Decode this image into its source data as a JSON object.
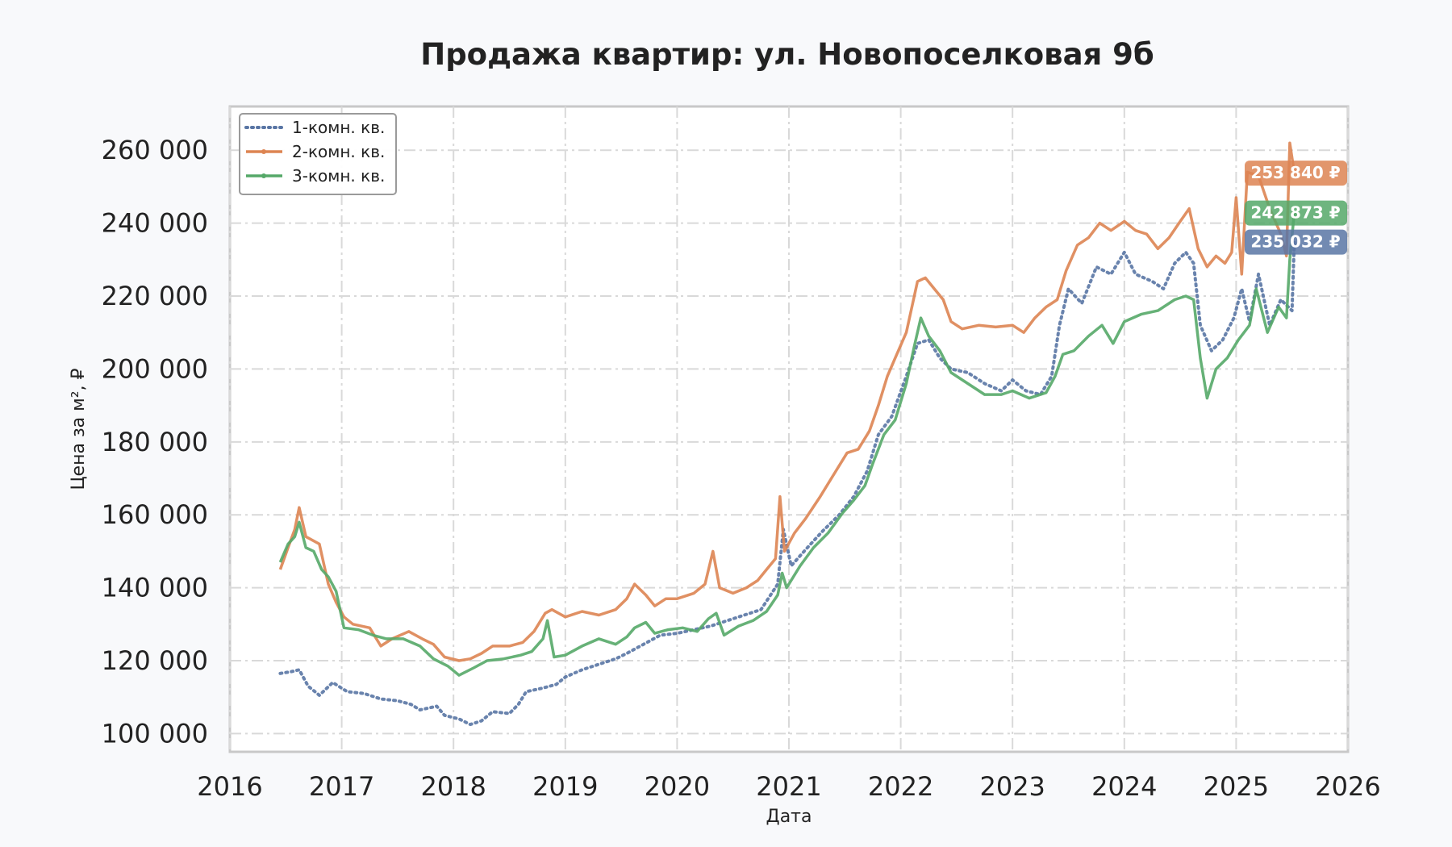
{
  "chart_data": {
    "type": "line",
    "title": "Продажа квартир: ул. Новопоселковая 9б",
    "xlabel": "Дата",
    "ylabel": "Цена за м², ₽",
    "xlim": [
      2016,
      2026
    ],
    "ylim": [
      95000,
      272000
    ],
    "x_ticks": [
      "2016",
      "2017",
      "2018",
      "2019",
      "2020",
      "2021",
      "2022",
      "2023",
      "2024",
      "2025",
      "2026"
    ],
    "y_ticks": [
      "100 000",
      "120 000",
      "140 000",
      "160 000",
      "180 000",
      "200 000",
      "220 000",
      "240 000",
      "260 000"
    ],
    "grid": true,
    "legend_position": "top-left",
    "series": [
      {
        "name": "1-комн. кв.",
        "color": "#5975a4",
        "style": "dotted",
        "end_label": "235 032 ₽",
        "points": [
          [
            2016.45,
            116500
          ],
          [
            2016.55,
            117000
          ],
          [
            2016.62,
            117500
          ],
          [
            2016.7,
            113000
          ],
          [
            2016.8,
            110500
          ],
          [
            2016.92,
            114000
          ],
          [
            2017.05,
            111500
          ],
          [
            2017.2,
            111000
          ],
          [
            2017.35,
            109500
          ],
          [
            2017.5,
            109000
          ],
          [
            2017.62,
            108000
          ],
          [
            2017.7,
            106500
          ],
          [
            2017.85,
            107500
          ],
          [
            2017.92,
            105000
          ],
          [
            2018.05,
            104000
          ],
          [
            2018.15,
            102500
          ],
          [
            2018.25,
            103500
          ],
          [
            2018.35,
            106000
          ],
          [
            2018.5,
            105500
          ],
          [
            2018.58,
            108000
          ],
          [
            2018.65,
            111500
          ],
          [
            2018.8,
            112500
          ],
          [
            2018.92,
            113500
          ],
          [
            2019.0,
            115500
          ],
          [
            2019.15,
            117500
          ],
          [
            2019.3,
            119000
          ],
          [
            2019.45,
            120500
          ],
          [
            2019.55,
            122000
          ],
          [
            2019.7,
            124500
          ],
          [
            2019.85,
            127000
          ],
          [
            2020.0,
            127500
          ],
          [
            2020.15,
            128500
          ],
          [
            2020.3,
            129500
          ],
          [
            2020.45,
            131000
          ],
          [
            2020.6,
            132500
          ],
          [
            2020.75,
            134000
          ],
          [
            2020.9,
            141000
          ],
          [
            2020.95,
            156000
          ],
          [
            2021.02,
            146000
          ],
          [
            2021.15,
            150500
          ],
          [
            2021.3,
            155500
          ],
          [
            2021.45,
            160000
          ],
          [
            2021.58,
            165000
          ],
          [
            2021.7,
            172000
          ],
          [
            2021.8,
            182000
          ],
          [
            2021.92,
            187000
          ],
          [
            2022.05,
            198000
          ],
          [
            2022.15,
            207000
          ],
          [
            2022.25,
            208000
          ],
          [
            2022.35,
            203000
          ],
          [
            2022.45,
            200000
          ],
          [
            2022.6,
            199000
          ],
          [
            2022.75,
            196000
          ],
          [
            2022.9,
            194000
          ],
          [
            2023.0,
            197000
          ],
          [
            2023.12,
            194000
          ],
          [
            2023.25,
            193000
          ],
          [
            2023.35,
            198000
          ],
          [
            2023.42,
            212000
          ],
          [
            2023.5,
            222000
          ],
          [
            2023.62,
            218000
          ],
          [
            2023.75,
            228000
          ],
          [
            2023.88,
            226000
          ],
          [
            2024.0,
            232000
          ],
          [
            2024.1,
            226000
          ],
          [
            2024.25,
            224000
          ],
          [
            2024.35,
            222000
          ],
          [
            2024.45,
            229000
          ],
          [
            2024.55,
            232000
          ],
          [
            2024.62,
            229000
          ],
          [
            2024.68,
            212000
          ],
          [
            2024.78,
            205000
          ],
          [
            2024.88,
            208000
          ],
          [
            2024.98,
            214000
          ],
          [
            2025.05,
            222000
          ],
          [
            2025.12,
            213000
          ],
          [
            2025.2,
            226000
          ],
          [
            2025.3,
            212000
          ],
          [
            2025.4,
            219000
          ],
          [
            2025.5,
            216000
          ],
          [
            2025.52,
            235032
          ]
        ]
      },
      {
        "name": "2-комн. кв.",
        "color": "#dd8452",
        "style": "solid",
        "end_label": "253 840 ₽",
        "points": [
          [
            2016.45,
            145000
          ],
          [
            2016.52,
            151000
          ],
          [
            2016.58,
            156000
          ],
          [
            2016.62,
            162000
          ],
          [
            2016.68,
            154000
          ],
          [
            2016.8,
            152000
          ],
          [
            2016.88,
            141000
          ],
          [
            2016.95,
            136000
          ],
          [
            2017.02,
            132000
          ],
          [
            2017.1,
            130000
          ],
          [
            2017.25,
            129000
          ],
          [
            2017.35,
            124000
          ],
          [
            2017.45,
            126000
          ],
          [
            2017.6,
            128000
          ],
          [
            2017.72,
            126000
          ],
          [
            2017.82,
            124500
          ],
          [
            2017.92,
            121000
          ],
          [
            2018.05,
            120000
          ],
          [
            2018.15,
            120500
          ],
          [
            2018.25,
            122000
          ],
          [
            2018.35,
            124000
          ],
          [
            2018.5,
            124000
          ],
          [
            2018.62,
            125000
          ],
          [
            2018.72,
            128000
          ],
          [
            2018.82,
            133000
          ],
          [
            2018.88,
            134000
          ],
          [
            2019.0,
            132000
          ],
          [
            2019.15,
            133500
          ],
          [
            2019.3,
            132500
          ],
          [
            2019.45,
            134000
          ],
          [
            2019.55,
            137000
          ],
          [
            2019.62,
            141000
          ],
          [
            2019.72,
            138000
          ],
          [
            2019.8,
            135000
          ],
          [
            2019.9,
            137000
          ],
          [
            2020.0,
            137000
          ],
          [
            2020.15,
            138500
          ],
          [
            2020.25,
            141000
          ],
          [
            2020.32,
            150000
          ],
          [
            2020.38,
            140000
          ],
          [
            2020.5,
            138500
          ],
          [
            2020.62,
            140000
          ],
          [
            2020.72,
            142000
          ],
          [
            2020.8,
            145000
          ],
          [
            2020.88,
            148000
          ],
          [
            2020.92,
            165000
          ],
          [
            2020.96,
            150000
          ],
          [
            2021.05,
            155000
          ],
          [
            2021.15,
            159000
          ],
          [
            2021.28,
            165000
          ],
          [
            2021.4,
            171000
          ],
          [
            2021.52,
            177000
          ],
          [
            2021.62,
            178000
          ],
          [
            2021.72,
            183000
          ],
          [
            2021.8,
            190000
          ],
          [
            2021.88,
            198000
          ],
          [
            2021.95,
            203000
          ],
          [
            2022.05,
            210000
          ],
          [
            2022.15,
            224000
          ],
          [
            2022.22,
            225000
          ],
          [
            2022.3,
            222000
          ],
          [
            2022.38,
            219000
          ],
          [
            2022.45,
            213000
          ],
          [
            2022.55,
            211000
          ],
          [
            2022.7,
            212000
          ],
          [
            2022.85,
            211500
          ],
          [
            2023.0,
            212000
          ],
          [
            2023.1,
            210000
          ],
          [
            2023.2,
            214000
          ],
          [
            2023.3,
            217000
          ],
          [
            2023.4,
            219000
          ],
          [
            2023.48,
            227000
          ],
          [
            2023.58,
            234000
          ],
          [
            2023.68,
            236000
          ],
          [
            2023.78,
            240000
          ],
          [
            2023.88,
            238000
          ],
          [
            2024.0,
            240500
          ],
          [
            2024.1,
            238000
          ],
          [
            2024.2,
            237000
          ],
          [
            2024.3,
            233000
          ],
          [
            2024.4,
            236000
          ],
          [
            2024.5,
            240500
          ],
          [
            2024.58,
            244000
          ],
          [
            2024.66,
            233000
          ],
          [
            2024.74,
            228000
          ],
          [
            2024.82,
            231000
          ],
          [
            2024.9,
            229000
          ],
          [
            2024.96,
            232000
          ],
          [
            2025.0,
            247000
          ],
          [
            2025.05,
            226000
          ],
          [
            2025.1,
            254000
          ],
          [
            2025.2,
            253000
          ],
          [
            2025.3,
            244000
          ],
          [
            2025.4,
            237000
          ],
          [
            2025.45,
            231000
          ],
          [
            2025.48,
            262000
          ],
          [
            2025.52,
            253840
          ]
        ]
      },
      {
        "name": "3-комн. кв.",
        "color": "#55a868",
        "style": "solid",
        "end_label": "242 873 ₽",
        "points": [
          [
            2016.45,
            147000
          ],
          [
            2016.52,
            152000
          ],
          [
            2016.58,
            154000
          ],
          [
            2016.62,
            158000
          ],
          [
            2016.68,
            151000
          ],
          [
            2016.75,
            150000
          ],
          [
            2016.82,
            145000
          ],
          [
            2016.88,
            143000
          ],
          [
            2016.95,
            139000
          ],
          [
            2017.02,
            129000
          ],
          [
            2017.15,
            128500
          ],
          [
            2017.28,
            127000
          ],
          [
            2017.4,
            126000
          ],
          [
            2017.55,
            126000
          ],
          [
            2017.7,
            124000
          ],
          [
            2017.82,
            120500
          ],
          [
            2017.95,
            118500
          ],
          [
            2018.05,
            116000
          ],
          [
            2018.18,
            118000
          ],
          [
            2018.3,
            120000
          ],
          [
            2018.45,
            120500
          ],
          [
            2018.6,
            121500
          ],
          [
            2018.7,
            122500
          ],
          [
            2018.8,
            126000
          ],
          [
            2018.84,
            131000
          ],
          [
            2018.9,
            121000
          ],
          [
            2019.0,
            121500
          ],
          [
            2019.15,
            124000
          ],
          [
            2019.3,
            126000
          ],
          [
            2019.45,
            124500
          ],
          [
            2019.55,
            126500
          ],
          [
            2019.62,
            129000
          ],
          [
            2019.72,
            130500
          ],
          [
            2019.8,
            127500
          ],
          [
            2019.92,
            128500
          ],
          [
            2020.05,
            129000
          ],
          [
            2020.18,
            128000
          ],
          [
            2020.28,
            131500
          ],
          [
            2020.35,
            133000
          ],
          [
            2020.42,
            127000
          ],
          [
            2020.55,
            129500
          ],
          [
            2020.68,
            131000
          ],
          [
            2020.8,
            133500
          ],
          [
            2020.9,
            138000
          ],
          [
            2020.94,
            144000
          ],
          [
            2020.98,
            140000
          ],
          [
            2021.1,
            146000
          ],
          [
            2021.22,
            151000
          ],
          [
            2021.35,
            155000
          ],
          [
            2021.48,
            160500
          ],
          [
            2021.58,
            164000
          ],
          [
            2021.68,
            168000
          ],
          [
            2021.75,
            174000
          ],
          [
            2021.85,
            182000
          ],
          [
            2021.95,
            186000
          ],
          [
            2022.05,
            196000
          ],
          [
            2022.12,
            206000
          ],
          [
            2022.18,
            214000
          ],
          [
            2022.25,
            209000
          ],
          [
            2022.35,
            205000
          ],
          [
            2022.45,
            199000
          ],
          [
            2022.6,
            196000
          ],
          [
            2022.75,
            193000
          ],
          [
            2022.9,
            193000
          ],
          [
            2023.0,
            194000
          ],
          [
            2023.15,
            192000
          ],
          [
            2023.3,
            193500
          ],
          [
            2023.38,
            198000
          ],
          [
            2023.45,
            204000
          ],
          [
            2023.55,
            205000
          ],
          [
            2023.68,
            209000
          ],
          [
            2023.8,
            212000
          ],
          [
            2023.9,
            207000
          ],
          [
            2024.0,
            213000
          ],
          [
            2024.15,
            215000
          ],
          [
            2024.3,
            216000
          ],
          [
            2024.45,
            219000
          ],
          [
            2024.55,
            220000
          ],
          [
            2024.62,
            219000
          ],
          [
            2024.68,
            203000
          ],
          [
            2024.74,
            192000
          ],
          [
            2024.82,
            200000
          ],
          [
            2024.92,
            203000
          ],
          [
            2025.02,
            208000
          ],
          [
            2025.12,
            212000
          ],
          [
            2025.18,
            222000
          ],
          [
            2025.28,
            210000
          ],
          [
            2025.38,
            217000
          ],
          [
            2025.45,
            214000
          ],
          [
            2025.48,
            230000
          ],
          [
            2025.52,
            242873
          ]
        ]
      }
    ]
  }
}
